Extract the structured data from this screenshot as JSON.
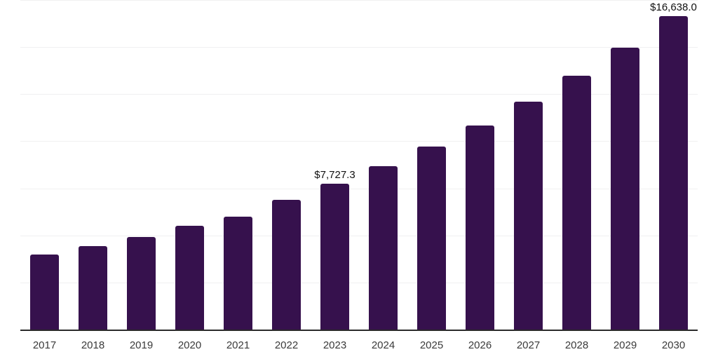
{
  "chart_data": {
    "type": "bar",
    "title": "",
    "xlabel": "",
    "ylabel": "",
    "categories": [
      "2017",
      "2018",
      "2019",
      "2020",
      "2021",
      "2022",
      "2023",
      "2024",
      "2025",
      "2026",
      "2027",
      "2028",
      "2029",
      "2030"
    ],
    "values": [
      3975,
      4430,
      4905,
      5510,
      6010,
      6880,
      7727.3,
      8680,
      9735,
      10850,
      12110,
      13470,
      14985,
      16638
    ],
    "annotations": [
      {
        "category": "2023",
        "text": "$7,727.3"
      },
      {
        "category": "2030",
        "text": "$16,638.0"
      }
    ],
    "ylim": [
      0,
      17500
    ],
    "gridline_step": 2500,
    "grid": "horizontal",
    "legend": "none",
    "colors": {
      "bar": "#36114d",
      "gridline": "#f0f0f1",
      "axis_line": "#2b2b2b",
      "tick_label": "#3a3a3a",
      "value_label": "#111111",
      "background": "#ffffff"
    }
  }
}
